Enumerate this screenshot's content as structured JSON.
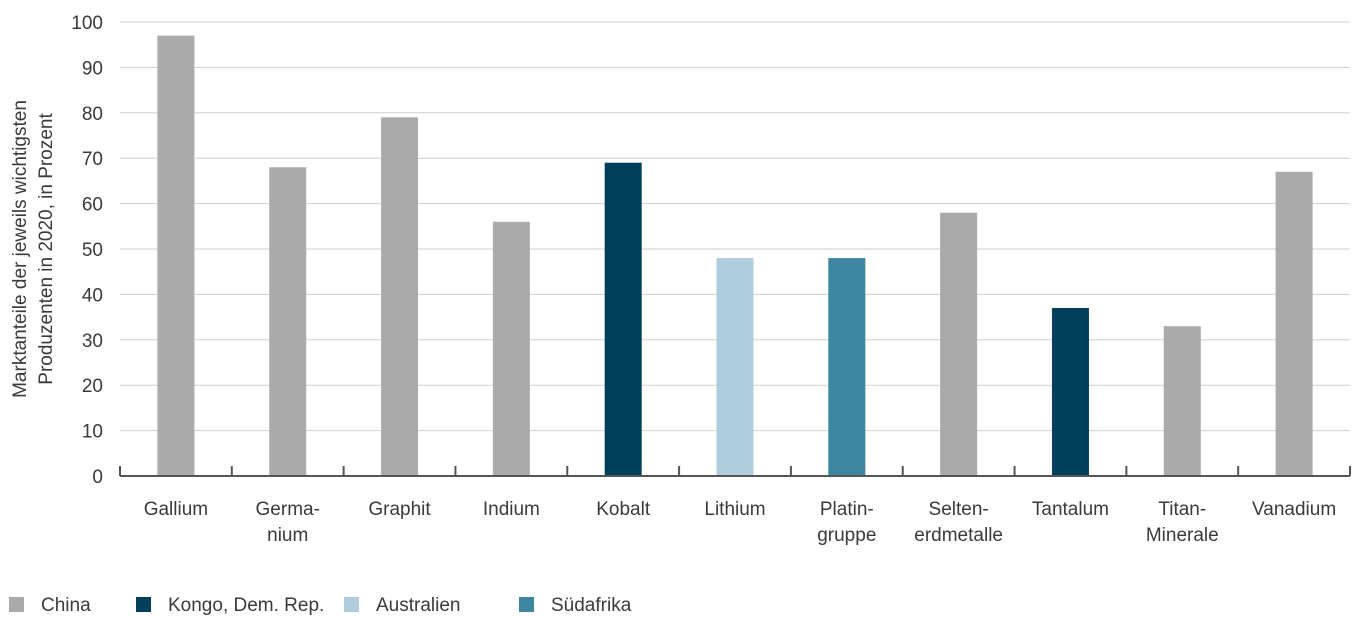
{
  "chart_data": {
    "type": "bar",
    "title": "",
    "ylabel": "Marktanteile der jeweils wichtigsten Produzenten in 2020, in Prozent",
    "ylabel_lines": [
      "Marktanteile der jeweils wichtigsten",
      "Produzenten in 2020, in Prozent"
    ],
    "ylim": [
      0,
      100
    ],
    "yticks": [
      0,
      10,
      20,
      30,
      40,
      50,
      60,
      70,
      80,
      90,
      100
    ],
    "grid": true,
    "legend_position": "bottom-left",
    "categories": [
      [
        "Gallium"
      ],
      [
        "Germa-",
        "nium"
      ],
      [
        "Graphit"
      ],
      [
        "Indium"
      ],
      [
        "Kobalt"
      ],
      [
        "Lithium"
      ],
      [
        "Platin-",
        "gruppe"
      ],
      [
        "Selten-",
        "erdmetalle"
      ],
      [
        "Tantalum"
      ],
      [
        "Titan-",
        "Minerale"
      ],
      [
        "Vanadium"
      ]
    ],
    "values": [
      97,
      68,
      79,
      56,
      69,
      48,
      48,
      58,
      37,
      33,
      67
    ],
    "producer": [
      "China",
      "China",
      "China",
      "China",
      "Kongo, Dem. Rep.",
      "Australien",
      "Südafrika",
      "China",
      "Kongo, Dem. Rep.",
      "China",
      "China"
    ],
    "legend": [
      {
        "name": "China",
        "color": "#aaaaaa"
      },
      {
        "name": "Kongo, Dem. Rep.",
        "color": "#003f5c"
      },
      {
        "name": "Australien",
        "color": "#afcddd"
      },
      {
        "name": "Südafrika",
        "color": "#3d86a1"
      }
    ]
  }
}
